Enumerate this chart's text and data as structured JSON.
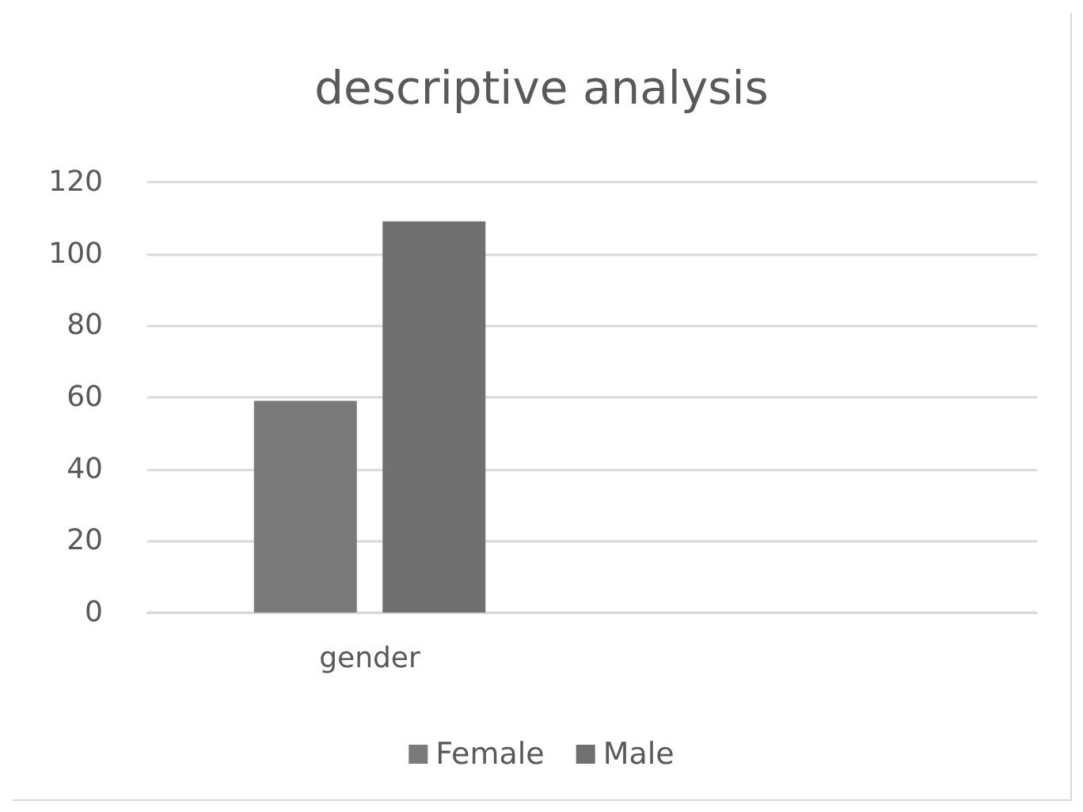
{
  "chart_data": {
    "type": "bar",
    "title": "descriptive analysis",
    "categories": [
      "gender",
      null
    ],
    "series": [
      {
        "name": "Female",
        "color": "#7a7a7a",
        "values": [
          59,
          null
        ]
      },
      {
        "name": "Male",
        "color": "#707070",
        "values": [
          109,
          null
        ]
      }
    ],
    "ylim": [
      0,
      120
    ],
    "yticks": [
      0,
      20,
      40,
      60,
      80,
      100,
      120
    ],
    "grid": "y",
    "legend": "bottom"
  }
}
